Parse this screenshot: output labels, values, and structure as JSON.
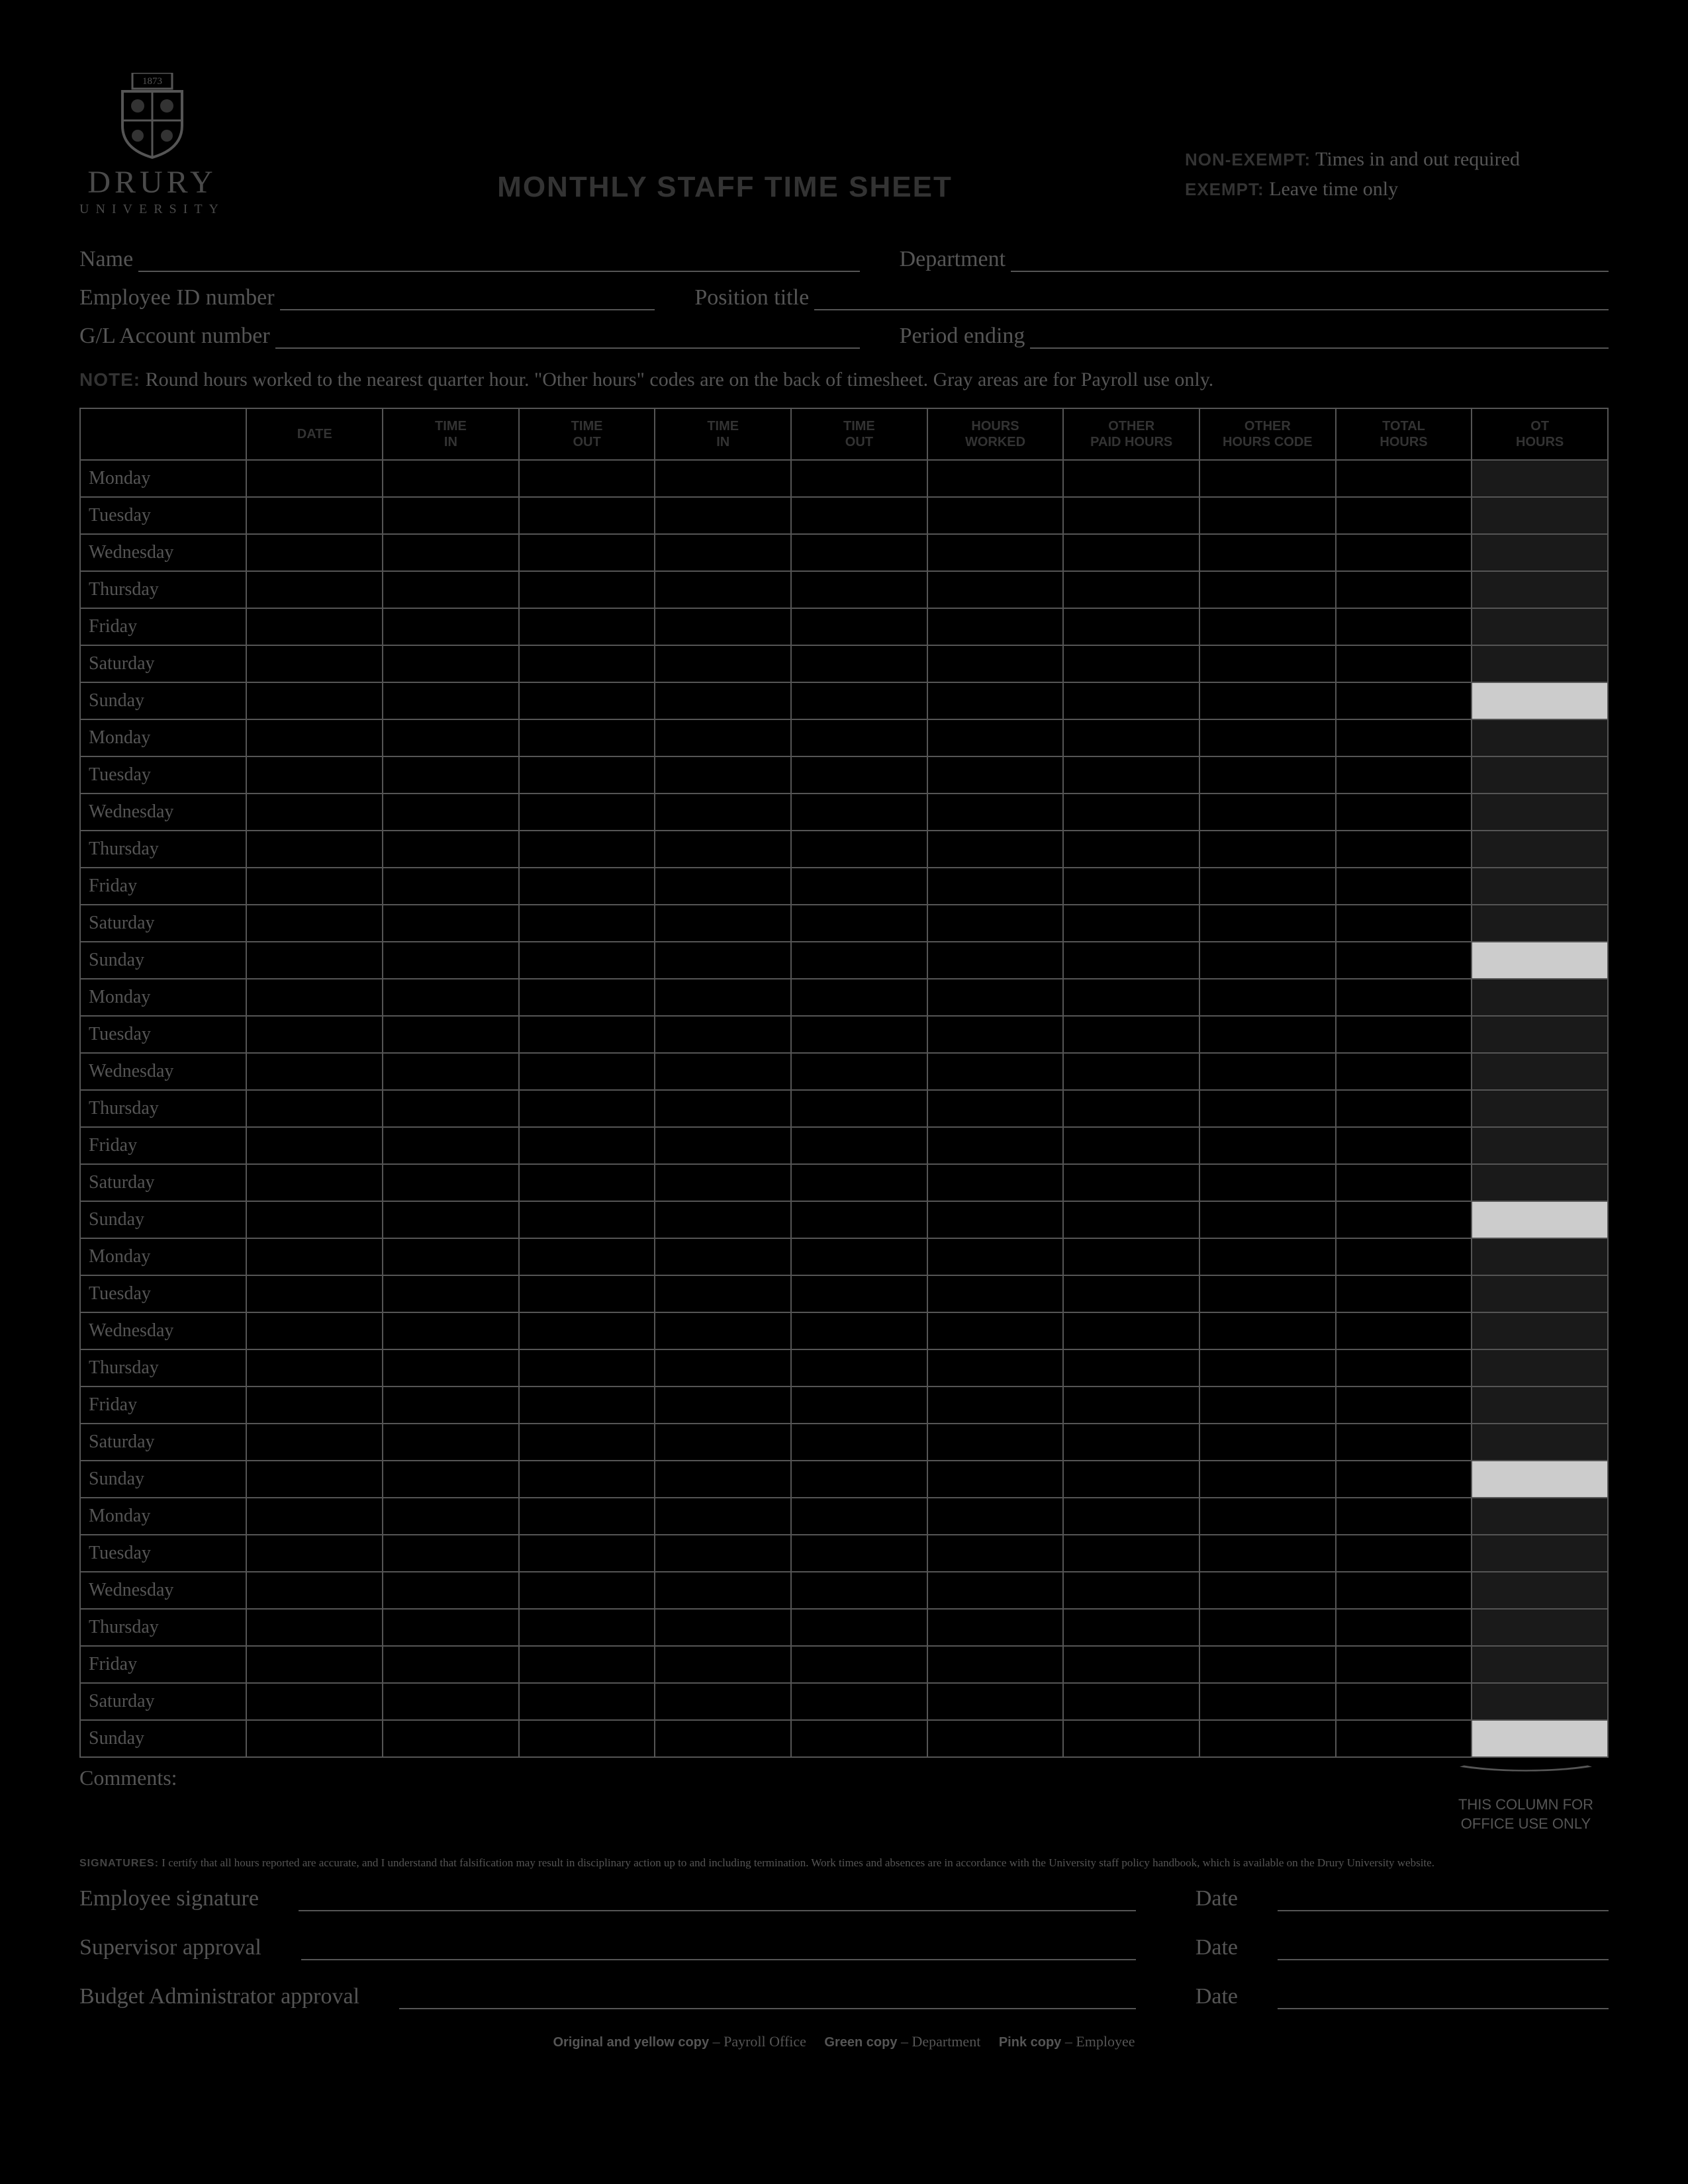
{
  "logo": {
    "est": "1873",
    "name": "DRURY",
    "sub": "UNIVERSITY"
  },
  "title": "MONTHLY STAFF TIME SHEET",
  "exempt": {
    "line1_b": "NON-EXEMPT:",
    "line1_t": " Times in and out required",
    "line2_b": "EXEMPT:",
    "line2_t": " Leave time only"
  },
  "fields": {
    "name": "Name",
    "department": "Department",
    "emp_id": "Employee ID number",
    "position": "Position title",
    "gl": "G/L Account number",
    "period": "Period ending"
  },
  "note_b": "NOTE:",
  "note_t": " Round hours worked to the nearest quarter hour. \"Other hours\" codes are on the back of timesheet. Gray areas are for Payroll use only.",
  "columns": [
    "",
    "DATE",
    "TIME IN",
    "TIME OUT",
    "TIME IN",
    "TIME OUT",
    "HOURS WORKED",
    "OTHER PAID HOURS",
    "OTHER HOURS CODE",
    "TOTAL HOURS",
    "OT HOURS"
  ],
  "days": [
    "Monday",
    "Tuesday",
    "Wednesday",
    "Thursday",
    "Friday",
    "Saturday",
    "Sunday"
  ],
  "weeks": 5,
  "comments_label": "Comments:",
  "office_col": "THIS COLUMN FOR OFFICE USE ONLY",
  "sig_note_b": "SIGNATURES:",
  "sig_note_t": " I certify that all hours reported are accurate, and I understand that falsification may result in disciplinary action up to and including termination. Work times and absences are in accordance with the University staff policy handbook, which is available on the Drury University website.",
  "sigs": {
    "employee": "Employee signature",
    "supervisor": "Supervisor approval",
    "budget": "Budget Administrator approval",
    "date": "Date"
  },
  "footer": [
    {
      "b": "Original and yellow copy",
      "t": " – Payroll Office"
    },
    {
      "b": "Green copy",
      "t": " – Department"
    },
    {
      "b": "Pink copy",
      "t": " – Employee"
    }
  ],
  "colors": {
    "page_bg": "#000000",
    "line": "#555555",
    "text": "#555555",
    "heading": "#333333",
    "ot_fill": "#1a1a1a",
    "ot_sunday": "#cccccc"
  }
}
